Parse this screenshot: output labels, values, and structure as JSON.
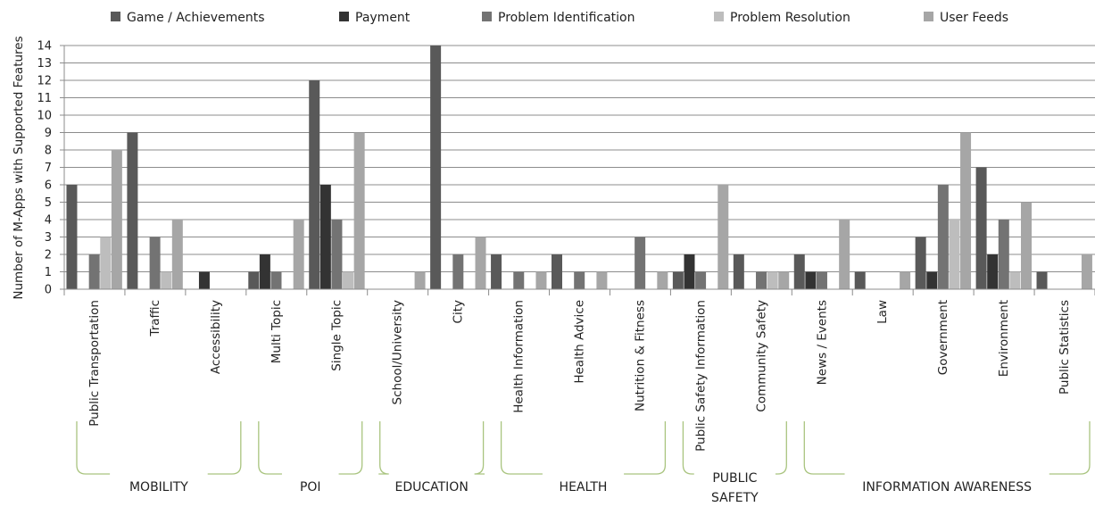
{
  "chart_data": {
    "type": "bar",
    "ylabel": "Number of M-Apps with Supported Features",
    "xlabel": "",
    "ylim": [
      0,
      14
    ],
    "yticks": [
      0,
      1,
      2,
      3,
      4,
      5,
      6,
      7,
      8,
      9,
      10,
      11,
      12,
      13,
      14
    ],
    "grid": true,
    "legend_position": "top",
    "categories": [
      "Public Transportation",
      "Traffic",
      "Accessibility",
      "Multi Topic",
      "Single Topic",
      "School/University",
      "City",
      "Health Information",
      "Health Advice",
      "Nutrition & Fitness",
      "Public Safety Information",
      "Community Safety",
      "News / Events",
      "Law",
      "Government",
      "Environment",
      "Public Statistics"
    ],
    "series": [
      {
        "name": "Game / Achievements",
        "color": "#595959",
        "values": [
          6,
          9,
          0,
          1,
          12,
          0,
          14,
          2,
          2,
          0,
          1,
          2,
          2,
          1,
          3,
          7,
          1
        ]
      },
      {
        "name": "Payment",
        "color": "#333333",
        "values": [
          0,
          0,
          1,
          2,
          6,
          0,
          0,
          0,
          0,
          0,
          2,
          0,
          1,
          0,
          1,
          2,
          0
        ]
      },
      {
        "name": "Problem Identification",
        "color": "#737373",
        "values": [
          2,
          3,
          0,
          1,
          4,
          0,
          2,
          1,
          1,
          3,
          1,
          1,
          1,
          0,
          6,
          4,
          0
        ]
      },
      {
        "name": "Problem Resolution",
        "color": "#bdbdbd",
        "values": [
          3,
          1,
          0,
          0,
          1,
          0,
          0,
          0,
          0,
          0,
          0,
          1,
          0,
          0,
          4,
          1,
          0
        ]
      },
      {
        "name": "User Feeds",
        "color": "#a6a6a6",
        "values": [
          8,
          4,
          0,
          4,
          9,
          1,
          3,
          1,
          1,
          1,
          6,
          1,
          4,
          1,
          9,
          5,
          2
        ]
      }
    ],
    "groups": [
      {
        "label": "MOBILITY",
        "categories": [
          "Public Transportation",
          "Traffic",
          "Accessibility"
        ]
      },
      {
        "label": "POI",
        "categories": [
          "Multi Topic",
          "Single Topic"
        ]
      },
      {
        "label": "EDUCATION",
        "categories": [
          "School/University",
          "City"
        ]
      },
      {
        "label": "HEALTH",
        "categories": [
          "Health Information",
          "Health Advice",
          "Nutrition & Fitness"
        ]
      },
      {
        "label": "PUBLIC SAFETY",
        "categories": [
          "Public Safety Information",
          "Community Safety"
        ]
      },
      {
        "label": "INFORMATION AWARENESS",
        "categories": [
          "News / Events",
          "Law",
          "Government",
          "Environment",
          "Public Statistics"
        ]
      }
    ],
    "bracket_color": "#a9c47f"
  }
}
